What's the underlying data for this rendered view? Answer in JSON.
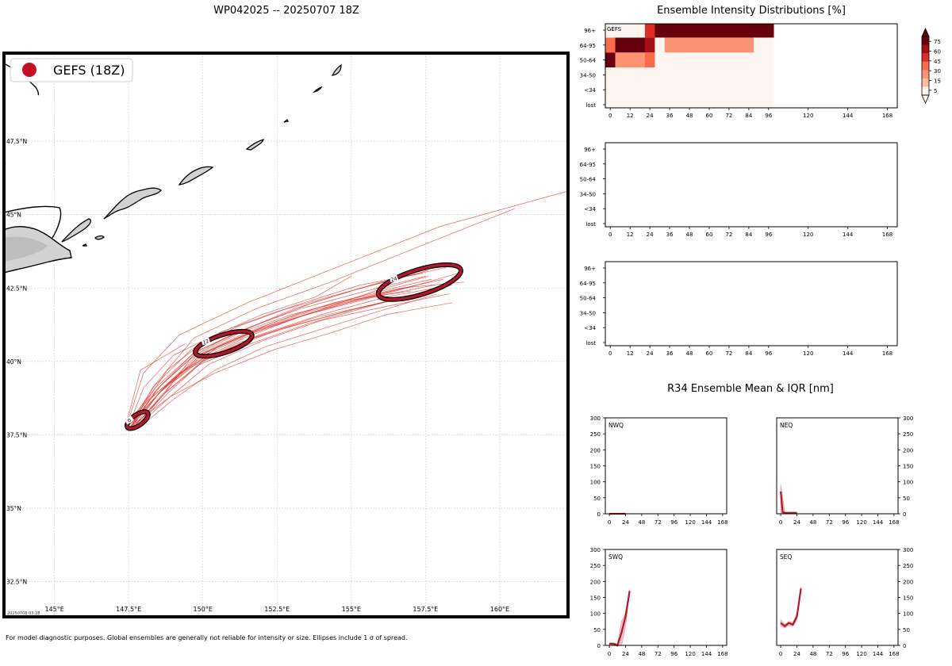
{
  "figure": {
    "title": "WP042025 -- 20250707 18Z",
    "footnote": "For model diagnostic purposes. Global ensembles are generally not reliable for intensity or size. Ellipses include 1 σ of spread.",
    "timestamp": "20250708 03:28",
    "colors": {
      "track": "#b2182b",
      "track_member": "#de2d26",
      "land_fill": "#d4d4d4",
      "land_edge": "#000000"
    }
  },
  "chart_data": [
    {
      "id": "track_map",
      "type": "scatter",
      "title": "WP042025 -- 20250707 18Z",
      "legend": {
        "label": "GEFS (18Z)",
        "placement": "top-left",
        "color": "#c40f24"
      },
      "xlim": [
        143.3,
        162.3
      ],
      "ylim": [
        31.3,
        50.5
      ],
      "xticks": [
        145,
        147.5,
        150,
        152.5,
        155,
        157.5,
        160
      ],
      "xtick_labels": [
        "145°E",
        "147.5°E",
        "150°E",
        "152.5°E",
        "155°E",
        "157.5°E",
        "160°E"
      ],
      "yticks": [
        32.5,
        35,
        37.5,
        40,
        42.5,
        45,
        47.5
      ],
      "ytick_labels": [
        "32.5°N",
        "35°N",
        "37.5°N",
        "40°N",
        "42.5°N",
        "45°N",
        "47.5°N"
      ],
      "ellipses": [
        {
          "label": "0",
          "lon": 147.8,
          "lat": 38.0,
          "rx": 0.42,
          "ry": 0.18,
          "angle": 35
        },
        {
          "label": "12",
          "lon": 150.7,
          "lat": 40.6,
          "rx": 1.0,
          "ry": 0.3,
          "angle": 18
        },
        {
          "label": "24",
          "lon": 157.3,
          "lat": 42.7,
          "rx": 1.45,
          "ry": 0.42,
          "angle": 17
        }
      ],
      "member_tracks": [
        [
          [
            147.6,
            37.8
          ],
          [
            148.6,
            39.0
          ],
          [
            149.8,
            40.1
          ],
          [
            151.5,
            40.9
          ],
          [
            153.5,
            41.6
          ],
          [
            155.8,
            42.2
          ],
          [
            157.8,
            42.6
          ]
        ],
        [
          [
            147.5,
            37.9
          ],
          [
            148.5,
            39.1
          ],
          [
            149.7,
            40.3
          ],
          [
            151.4,
            41.1
          ],
          [
            153.3,
            41.8
          ],
          [
            155.5,
            42.4
          ],
          [
            157.5,
            42.9
          ]
        ],
        [
          [
            147.7,
            37.7
          ],
          [
            148.8,
            38.9
          ],
          [
            150.0,
            40.0
          ],
          [
            151.7,
            40.8
          ],
          [
            153.8,
            41.5
          ],
          [
            156.0,
            42.0
          ],
          [
            158.0,
            42.5
          ]
        ],
        [
          [
            147.6,
            38.0
          ],
          [
            148.4,
            39.2
          ],
          [
            149.6,
            40.4
          ],
          [
            151.2,
            41.2
          ],
          [
            153.1,
            41.9
          ],
          [
            155.3,
            42.6
          ],
          [
            157.4,
            43.0
          ]
        ],
        [
          [
            147.8,
            37.8
          ],
          [
            148.9,
            38.8
          ],
          [
            150.2,
            39.9
          ],
          [
            152.0,
            40.7
          ],
          [
            154.0,
            41.4
          ],
          [
            156.3,
            41.9
          ],
          [
            158.3,
            42.3
          ]
        ],
        [
          [
            147.5,
            37.8
          ],
          [
            148.6,
            39.0
          ],
          [
            149.9,
            40.2
          ],
          [
            151.6,
            41.0
          ],
          [
            153.6,
            41.7
          ],
          [
            155.9,
            42.3
          ],
          [
            158.1,
            42.8
          ]
        ],
        [
          [
            147.6,
            37.9
          ],
          [
            148.7,
            39.1
          ],
          [
            150.1,
            40.3
          ],
          [
            151.9,
            41.1
          ],
          [
            154.1,
            41.8
          ],
          [
            156.5,
            42.4
          ],
          [
            158.6,
            43.0
          ]
        ],
        [
          [
            147.7,
            37.8
          ],
          [
            148.5,
            38.9
          ],
          [
            149.8,
            40.0
          ],
          [
            151.4,
            40.8
          ],
          [
            153.2,
            41.5
          ],
          [
            155.2,
            42.1
          ],
          [
            157.2,
            42.6
          ]
        ],
        [
          [
            147.6,
            37.7
          ],
          [
            148.2,
            38.7
          ],
          [
            149.2,
            39.6
          ],
          [
            150.8,
            40.4
          ],
          [
            152.6,
            41.1
          ],
          [
            154.8,
            41.7
          ],
          [
            156.8,
            42.2
          ]
        ],
        [
          [
            147.5,
            37.8
          ],
          [
            148.0,
            39.1
          ],
          [
            149.0,
            40.2
          ],
          [
            150.6,
            41.0
          ],
          [
            152.5,
            41.7
          ],
          [
            154.6,
            42.3
          ],
          [
            156.5,
            42.8
          ]
        ],
        [
          [
            147.8,
            37.9
          ],
          [
            149.0,
            39.3
          ],
          [
            150.5,
            40.5
          ],
          [
            152.3,
            41.3
          ],
          [
            154.4,
            42.0
          ],
          [
            156.7,
            42.5
          ],
          [
            158.8,
            42.7
          ]
        ],
        [
          [
            147.6,
            37.8
          ],
          [
            148.5,
            39.1
          ],
          [
            149.7,
            40.2
          ],
          [
            151.3,
            41.0
          ],
          [
            153.0,
            41.6
          ],
          [
            155.0,
            42.1
          ],
          [
            157.0,
            42.4
          ]
        ],
        [
          [
            147.7,
            37.8
          ],
          [
            148.7,
            38.9
          ],
          [
            149.9,
            39.9
          ],
          [
            151.6,
            40.6
          ],
          [
            153.6,
            41.3
          ],
          [
            155.7,
            41.9
          ],
          [
            157.6,
            42.4
          ]
        ],
        [
          [
            147.6,
            37.9
          ],
          [
            148.6,
            39.2
          ],
          [
            149.9,
            40.4
          ],
          [
            151.7,
            41.2
          ],
          [
            153.7,
            42.0
          ],
          [
            156.0,
            42.7
          ],
          [
            158.2,
            43.2
          ]
        ],
        [
          [
            147.5,
            37.7
          ],
          [
            148.3,
            38.8
          ],
          [
            149.5,
            39.8
          ],
          [
            151.1,
            40.6
          ],
          [
            153.0,
            41.2
          ],
          [
            155.2,
            41.8
          ],
          [
            157.3,
            42.3
          ]
        ],
        [
          [
            147.6,
            37.8
          ],
          [
            148.6,
            39.0
          ],
          [
            149.8,
            40.2
          ],
          [
            151.5,
            41.0
          ],
          [
            153.4,
            41.7
          ],
          [
            155.6,
            42.3
          ],
          [
            157.7,
            42.8
          ]
        ],
        [
          [
            147.7,
            37.8
          ],
          [
            148.8,
            39.0
          ],
          [
            150.1,
            40.1
          ],
          [
            151.9,
            40.9
          ],
          [
            154.0,
            41.6
          ],
          [
            156.2,
            42.2
          ],
          [
            158.4,
            42.6
          ]
        ],
        [
          [
            147.5,
            37.9
          ],
          [
            148.4,
            39.1
          ],
          [
            149.6,
            40.2
          ],
          [
            151.2,
            41.0
          ],
          [
            153.1,
            41.8
          ],
          [
            155.3,
            42.5
          ],
          [
            157.6,
            43.1
          ]
        ],
        [
          [
            147.5,
            37.6
          ],
          [
            148.3,
            39.1
          ],
          [
            149.7,
            40.8
          ],
          [
            151.8,
            41.8
          ],
          [
            154.3,
            42.7
          ],
          [
            157.5,
            44.0
          ],
          [
            160.5,
            45.2
          ]
        ],
        [
          [
            147.4,
            37.7
          ],
          [
            148.0,
            39.6
          ],
          [
            149.2,
            40.9
          ],
          [
            151.5,
            42.0
          ],
          [
            154.5,
            43.2
          ],
          [
            158.0,
            44.6
          ],
          [
            162.3,
            45.8
          ]
        ],
        [
          [
            147.6,
            37.9
          ],
          [
            148.8,
            39.7
          ],
          [
            150.2,
            40.8
          ],
          [
            152.0,
            41.6
          ],
          [
            153.8,
            42.2
          ],
          [
            155.0,
            42.9
          ]
        ],
        [
          [
            147.6,
            37.8
          ],
          [
            148.9,
            38.8
          ],
          [
            150.4,
            39.6
          ],
          [
            152.4,
            40.4
          ],
          [
            154.4,
            41.0
          ],
          [
            156.2,
            41.6
          ],
          [
            158.4,
            42.0
          ]
        ],
        [
          [
            147.4,
            37.8
          ],
          [
            147.9,
            39.7
          ],
          [
            149.4,
            40.6
          ]
        ],
        [
          [
            147.7,
            37.7
          ],
          [
            148.7,
            38.9
          ],
          [
            149.6,
            40.1
          ],
          [
            151.4,
            40.9
          ],
          [
            153.5,
            41.6
          ],
          [
            155.8,
            42.4
          ],
          [
            157.6,
            42.9
          ]
        ],
        [
          [
            147.8,
            37.7
          ],
          [
            149.0,
            38.7
          ],
          [
            150.4,
            39.7
          ],
          [
            152.1,
            40.5
          ],
          [
            154.0,
            41.1
          ],
          [
            155.9,
            41.7
          ],
          [
            157.9,
            42.3
          ]
        ]
      ],
      "ens_mean_track": [
        [
          147.8,
          38.0
        ],
        [
          150.7,
          40.6
        ],
        [
          157.3,
          42.7
        ]
      ]
    },
    {
      "id": "intensity_gefs",
      "type": "heatmap",
      "title": "Ensemble Intensity Distributions [%]",
      "panel_label": "GEFS",
      "x": [
        0,
        6,
        12,
        18,
        24,
        30,
        36,
        42,
        48,
        54,
        60,
        66,
        72,
        78,
        84,
        90,
        96
      ],
      "xticks": [
        0,
        12,
        24,
        36,
        48,
        60,
        72,
        84,
        96,
        120,
        144,
        168
      ],
      "xlim": [
        -3,
        174
      ],
      "y_categories": [
        "lost",
        "<34",
        "34-50",
        "50-64",
        "64-95",
        "96+"
      ],
      "values": [
        [
          0,
          0,
          0,
          0,
          0,
          0,
          0,
          0,
          0,
          0,
          0,
          0,
          0,
          0,
          0,
          0,
          0
        ],
        [
          0,
          0,
          0,
          0,
          0,
          0,
          0,
          0,
          0,
          0,
          0,
          0,
          0,
          0,
          0,
          0,
          0
        ],
        [
          0,
          0,
          0,
          0,
          0,
          0,
          0,
          0,
          0,
          0,
          0,
          0,
          0,
          0,
          0,
          0,
          0
        ],
        [
          80,
          15,
          15,
          15,
          30,
          0,
          0,
          0,
          0,
          0,
          0,
          0,
          0,
          0,
          0,
          0,
          0
        ],
        [
          30,
          80,
          80,
          80,
          60,
          0,
          15,
          15,
          15,
          15,
          15,
          15,
          15,
          15,
          15,
          0,
          0
        ],
        [
          0,
          0,
          0,
          0,
          50,
          80,
          80,
          80,
          80,
          80,
          80,
          80,
          80,
          80,
          80,
          80,
          80
        ]
      ],
      "colorbar": {
        "ticks": [
          5,
          15,
          30,
          45,
          60,
          75
        ],
        "colors": [
          "#fff5f0",
          "#fcbba1",
          "#fc9272",
          "#fb6a4a",
          "#de2d26",
          "#a50f15",
          "#67000d"
        ]
      }
    },
    {
      "id": "intensity_empty_2",
      "type": "heatmap",
      "xticks": [
        0,
        12,
        24,
        36,
        48,
        60,
        72,
        84,
        96,
        120,
        144,
        168
      ],
      "xlim": [
        -3,
        174
      ],
      "y_categories": [
        "lost",
        "<34",
        "34-50",
        "50-64",
        "64-95",
        "96+"
      ],
      "values": []
    },
    {
      "id": "intensity_empty_3",
      "type": "heatmap",
      "xticks": [
        0,
        12,
        24,
        36,
        48,
        60,
        72,
        84,
        96,
        120,
        144,
        168
      ],
      "xlim": [
        -3,
        174
      ],
      "y_categories": [
        "lost",
        "<34",
        "34-50",
        "50-64",
        "64-95",
        "96+"
      ],
      "values": []
    },
    {
      "id": "r34",
      "type": "line",
      "title": "R34 Ensemble Mean & IQR [nm]",
      "xticks": [
        0,
        24,
        48,
        72,
        96,
        120,
        144,
        168
      ],
      "xlim": [
        -6,
        174
      ],
      "yticks": [
        0,
        50,
        100,
        150,
        200,
        250,
        300
      ],
      "ylim": [
        0,
        300
      ],
      "quadrants": [
        {
          "name": "NWQ",
          "y_axis": "left",
          "mean": {
            "x": [
              0,
              6,
              12,
              18,
              24
            ],
            "y": [
              0,
              0,
              0,
              0,
              0
            ]
          },
          "iqr": []
        },
        {
          "name": "NEQ",
          "y_axis": "right",
          "mean": {
            "x": [
              0,
              3,
              6,
              12,
              18,
              24
            ],
            "y": [
              70,
              5,
              3,
              3,
              3,
              3
            ]
          },
          "iqr": [
            [
              0,
              90,
              0
            ],
            [
              6,
              5,
              0
            ],
            [
              24,
              5,
              0
            ]
          ]
        },
        {
          "name": "SWQ",
          "y_axis": "left",
          "mean": {
            "x": [
              0,
              6,
              12,
              18,
              24,
              30
            ],
            "y": [
              5,
              5,
              0,
              40,
              90,
              170
            ]
          },
          "iqr": [
            [
              0,
              8,
              0
            ],
            [
              6,
              8,
              0
            ],
            [
              12,
              5,
              0
            ],
            [
              18,
              75,
              0
            ],
            [
              24,
              100,
              60
            ],
            [
              30,
              175,
              165
            ]
          ]
        },
        {
          "name": "SEQ",
          "y_axis": "right",
          "mean": {
            "x": [
              0,
              6,
              12,
              18,
              24,
              30
            ],
            "y": [
              70,
              60,
              70,
              65,
              90,
              178
            ]
          },
          "iqr": [
            [
              0,
              80,
              60
            ],
            [
              6,
              65,
              55
            ],
            [
              12,
              75,
              62
            ],
            [
              18,
              72,
              60
            ],
            [
              24,
              100,
              80
            ],
            [
              30,
              182,
              172
            ]
          ]
        }
      ]
    }
  ]
}
